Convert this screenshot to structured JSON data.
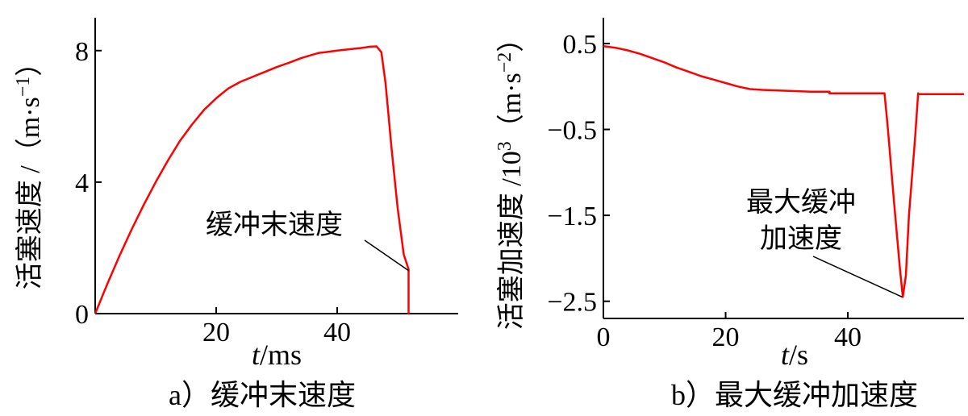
{
  "figure": {
    "panel_a_caption": "a）缓冲末速度",
    "panel_b_caption": "b）最大缓冲加速度"
  },
  "chart_data": [
    {
      "type": "line",
      "title": "",
      "xlabel_italic": "t",
      "xlabel_unit": "/ms",
      "ylabel_text": "活塞速度 /（m·s",
      "ylabel_sup": "−1",
      "ylabel_close": "）",
      "xlim": [
        0,
        60
      ],
      "ylim": [
        0,
        9
      ],
      "xticks": [
        20,
        40
      ],
      "xtick_labels": [
        "20",
        "40"
      ],
      "yticks": [
        0,
        4,
        8
      ],
      "ytick_labels": [
        "0",
        "4",
        "8"
      ],
      "grid": false,
      "line_color": "#ff0000",
      "annotation": {
        "text": "缓冲末速度",
        "x": 52,
        "y": 1.3
      },
      "series": [
        {
          "x": [
            0,
            2,
            4,
            6,
            8,
            10,
            12,
            14,
            16,
            18,
            20,
            22,
            24,
            26,
            28,
            30,
            32,
            34,
            36,
            37,
            38,
            40,
            42,
            44,
            45.5,
            46.5,
            47.3,
            48,
            49,
            50,
            51,
            51.8,
            51.8,
            51.9
          ],
          "y": [
            0,
            0.9,
            1.75,
            2.55,
            3.3,
            4.0,
            4.65,
            5.25,
            5.75,
            6.2,
            6.55,
            6.85,
            7.05,
            7.2,
            7.35,
            7.5,
            7.63,
            7.77,
            7.88,
            7.93,
            7.95,
            8.0,
            8.04,
            8.08,
            8.12,
            8.13,
            7.95,
            7.0,
            5.0,
            3.2,
            1.8,
            1.35,
            0,
            0
          ]
        }
      ]
    },
    {
      "type": "line",
      "title": "",
      "xlabel_italic": "t",
      "xlabel_unit": "/s",
      "ylabel_text": "活塞加速度 /10",
      "ylabel_exp": "3",
      "ylabel_unit": "（m·s",
      "ylabel_sup": "−2",
      "ylabel_close": "）",
      "xlim": [
        0,
        59
      ],
      "ylim": [
        -2.7,
        0.8
      ],
      "xticks": [
        0,
        20,
        40
      ],
      "xtick_labels": [
        "0",
        "20",
        "40"
      ],
      "yticks": [
        0.5,
        -0.5,
        -1.5,
        -2.5
      ],
      "ytick_labels": [
        "0.5",
        "−0.5",
        "−1.5",
        "−2.5"
      ],
      "grid": false,
      "line_color": "#ff0000",
      "annotation": {
        "text_line1": "最大缓冲",
        "text_line2": "加速度",
        "x": 49,
        "y": -2.45
      },
      "series": [
        {
          "x": [
            0,
            2,
            4,
            6,
            8,
            10,
            12,
            14,
            16,
            18,
            20,
            22,
            24,
            26,
            30,
            34,
            37,
            37,
            40,
            44,
            46,
            46.5,
            47.5,
            48.5,
            49,
            49.5,
            50,
            51,
            51.5,
            51.5,
            53,
            56,
            59
          ],
          "y": [
            0.47,
            0.45,
            0.42,
            0.38,
            0.33,
            0.28,
            0.22,
            0.17,
            0.12,
            0.08,
            0.04,
            0.0,
            -0.03,
            -0.04,
            -0.05,
            -0.06,
            -0.06,
            -0.08,
            -0.08,
            -0.08,
            -0.08,
            -0.45,
            -1.3,
            -2.1,
            -2.45,
            -2.2,
            -1.5,
            -0.6,
            -0.08,
            -0.09,
            -0.09,
            -0.09,
            -0.09
          ]
        }
      ]
    }
  ]
}
